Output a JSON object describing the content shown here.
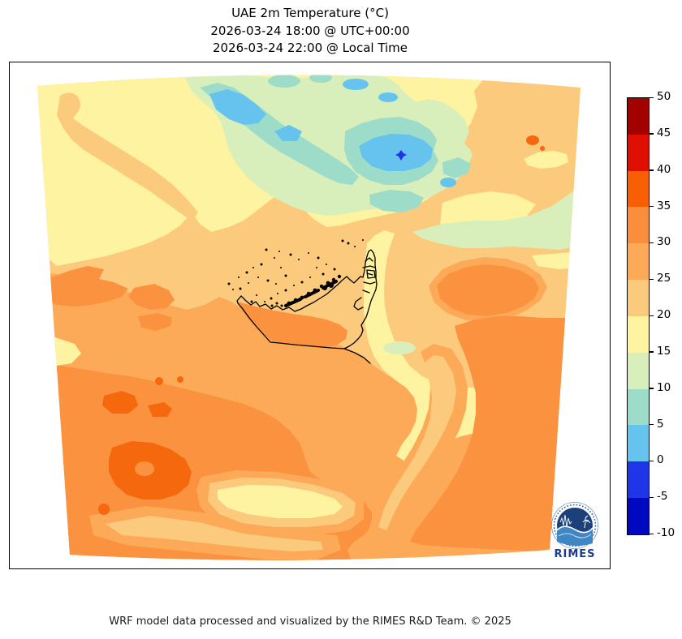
{
  "title": {
    "line1": "UAE 2m Temperature (°C)",
    "line2": "2026-03-24 18:00 @ UTC+00:00",
    "line3": "2026-03-24 22:00 @ Local Time"
  },
  "footer": {
    "text": "WRF model data processed and visualized by the RIMES R&D Team. © 2025"
  },
  "logo": {
    "text": "RIMES"
  },
  "palette": {
    "y": "#fdf3a0",
    "p1": "#fcca7d",
    "p2": "#fcaa58",
    "o": "#fa9240",
    "d": "#f5680d",
    "g": "#d8efbb",
    "a": "#9edcca",
    "b": "#65c3ee",
    "n": "#1f35e8",
    "outline": "#000000"
  },
  "chart_data": {
    "type": "heatmap",
    "title": "UAE 2m Temperature (°C)",
    "valid_time_utc": "2026-03-24 18:00 @ UTC+00:00",
    "valid_time_local": "2026-03-24 22:00 @ Local Time",
    "variable": "2m Temperature",
    "units": "°C",
    "projection_note": "curved WRF model domain over UAE region with country outline",
    "colorbar": {
      "min": -10,
      "max": 50,
      "step": 5,
      "tick_labels": [
        "50",
        "45",
        "40",
        "35",
        "30",
        "25",
        "20",
        "15",
        "10",
        "5",
        "0",
        "-5",
        "-10"
      ],
      "segments": [
        {
          "range": "45 to 50",
          "color": "#a30000"
        },
        {
          "range": "40 to 45",
          "color": "#de0e00"
        },
        {
          "range": "35 to 40",
          "color": "#f85f05"
        },
        {
          "range": "30 to 35",
          "color": "#fa8e3c"
        },
        {
          "range": "25 to 30",
          "color": "#fcaa58"
        },
        {
          "range": "20 to 25",
          "color": "#fcca7d"
        },
        {
          "range": "15 to 20",
          "color": "#fdf3a0"
        },
        {
          "range": "10 to 15",
          "color": "#d8efbb"
        },
        {
          "range": "5 to 10",
          "color": "#9edcca"
        },
        {
          "range": "0 to 5",
          "color": "#65c3ee"
        },
        {
          "range": "-5 to 0",
          "color": "#1f35e8"
        },
        {
          "range": "-10 to -5",
          "color": "#0008c0"
        }
      ]
    },
    "map_regions": [
      {
        "area": "top-left and top-center band",
        "temp_range_c": "15 to 20"
      },
      {
        "area": "northeast diagonal mountain band",
        "temp_range_c": "-5 to 15"
      },
      {
        "area": "coldest spot (tiny dot in northeast band)",
        "temp_range_c": "-5 to 0"
      },
      {
        "area": "broad central band including UAE coast and gulf",
        "temp_range_c": "20 to 25"
      },
      {
        "area": "UAE western interior tongue",
        "temp_range_c": "30 to 35"
      },
      {
        "area": "UAE eastern mountain strip",
        "temp_range_c": "15 to 20"
      },
      {
        "area": "bottom-left interior",
        "temp_range_c": "30 to 40"
      },
      {
        "area": "bottom-right interior",
        "temp_range_c": "25 to 35"
      },
      {
        "area": "bottom-center streak",
        "temp_range_c": "15 to 20"
      }
    ]
  }
}
